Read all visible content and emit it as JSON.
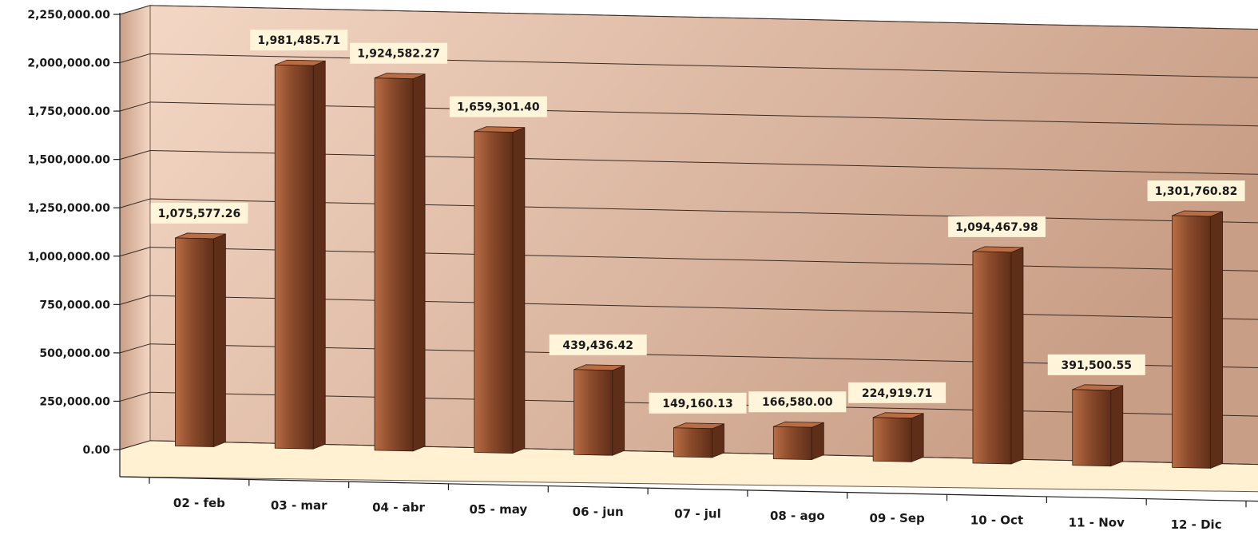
{
  "chart_data": {
    "type": "bar",
    "title": "",
    "xlabel": "",
    "ylabel": "",
    "categories": [
      "02 - feb",
      "03 - mar",
      "04 - abr",
      "05 - may",
      "06 - jun",
      "07 - jul",
      "08 - ago",
      "09 - Sep",
      "10 - Oct",
      "11 - Nov",
      "12 - Dic"
    ],
    "values": [
      1075577.26,
      1981485.71,
      1924582.27,
      1659301.4,
      439436.42,
      149160.13,
      166580.0,
      224919.71,
      1094467.98,
      391500.55,
      1301760.82
    ],
    "data_labels": [
      "1,075,577.26",
      "1,981,485.71",
      "1,924,582.27",
      "1,659,301.40",
      "439,436.42",
      "149,160.13",
      "166,580.00",
      "224,919.71",
      "1,094,467.98",
      "391,500.55",
      "1,301,760.82"
    ],
    "yticks": [
      0,
      250000,
      500000,
      750000,
      1000000,
      1250000,
      1500000,
      1750000,
      2000000,
      2250000
    ],
    "ytick_labels": [
      "0.00",
      "250,000.00",
      "500,000.00",
      "750,000.00",
      "1,000,000.00",
      "1,250,000.00",
      "1,500,000.00",
      "1,750,000.00",
      "2,000,000.00",
      "2,250,000.00"
    ],
    "ylim": [
      0,
      2250000
    ],
    "grid": true,
    "legend": "none",
    "style": "3d-column",
    "colors": {
      "bar": "#8B4A2B",
      "bar_light": "#B86D45",
      "bar_dark": "#5E2E18",
      "wall_light": "#F3D7C4",
      "wall_dark": "#C99E86",
      "floor": "#FFF1D2",
      "label_bg": "#FFF5DA",
      "gridline": "#3A2A22",
      "axis": "#1C1C1C"
    }
  }
}
